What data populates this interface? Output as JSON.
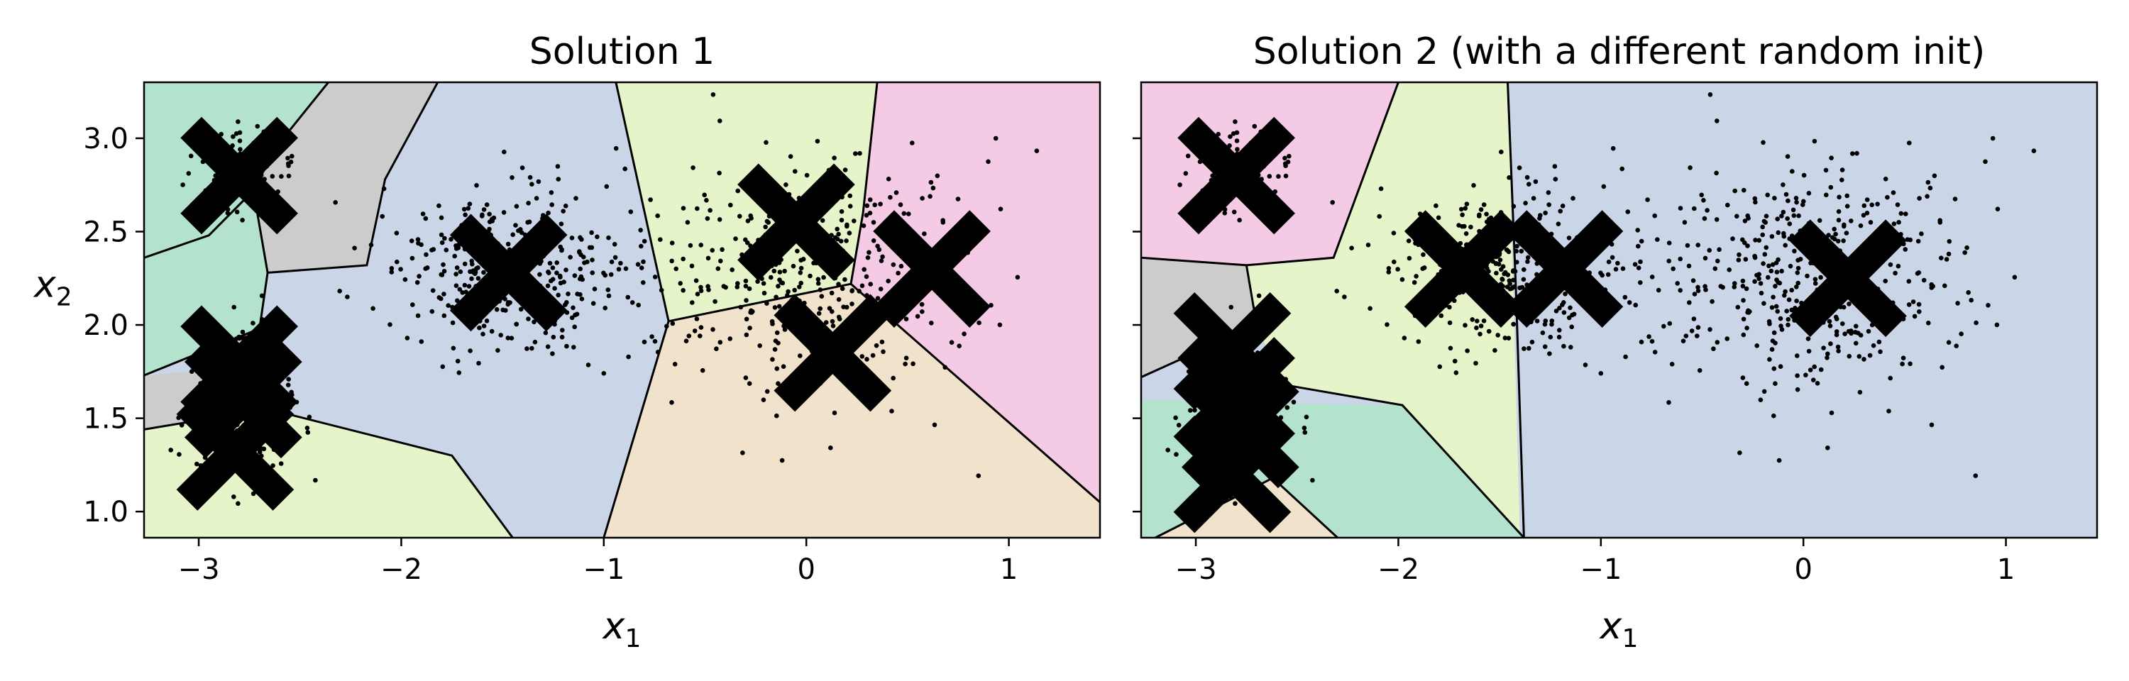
{
  "chart_data": [
    {
      "type": "scatter",
      "title": "Solution 1",
      "xlabel": "x",
      "xlabel_sub": "1",
      "ylabel": "x",
      "ylabel_sub": "2",
      "xlim": [
        -3.27,
        1.45
      ],
      "ylim": [
        0.86,
        3.3
      ],
      "xticks": [
        {
          "v": -3,
          "label": "−3"
        },
        {
          "v": -2,
          "label": "−2"
        },
        {
          "v": -1,
          "label": "−1"
        },
        {
          "v": 0,
          "label": "0"
        },
        {
          "v": 1,
          "label": "1"
        }
      ],
      "yticks": [
        {
          "v": 1.0,
          "label": "1.0"
        },
        {
          "v": 1.5,
          "label": "1.5"
        },
        {
          "v": 2.0,
          "label": "2.0"
        },
        {
          "v": 2.5,
          "label": "2.5"
        },
        {
          "v": 3.0,
          "label": "3.0"
        }
      ],
      "show_ytick_labels": true,
      "grid": false,
      "centroids": [
        {
          "x": -2.8,
          "y": 2.8
        },
        {
          "x": -1.47,
          "y": 2.28
        },
        {
          "x": -0.05,
          "y": 2.55
        },
        {
          "x": 0.62,
          "y": 2.3
        },
        {
          "x": 0.13,
          "y": 1.85
        },
        {
          "x": -2.8,
          "y": 1.79
        },
        {
          "x": -2.78,
          "y": 1.6
        },
        {
          "x": -2.82,
          "y": 1.32
        }
      ],
      "regions": [
        {
          "color": "#b3e2cd",
          "polygon": [
            [
              -3.27,
              3.3
            ],
            [
              -2.36,
              3.3
            ],
            [
              -2.62,
              2.95
            ],
            [
              -2.73,
              2.72
            ],
            [
              -2.95,
              2.48
            ],
            [
              -3.27,
              2.36
            ]
          ]
        },
        {
          "color": "#cccccc",
          "polygon": [
            [
              -2.36,
              3.3
            ],
            [
              -1.82,
              3.3
            ],
            [
              -2.08,
              2.78
            ],
            [
              -2.17,
              2.32
            ],
            [
              -2.66,
              2.28
            ],
            [
              -2.73,
              2.72
            ],
            [
              -2.62,
              2.95
            ]
          ]
        },
        {
          "color": "#cbd5e8",
          "polygon": [
            [
              -1.82,
              3.3
            ],
            [
              -0.94,
              3.3
            ],
            [
              -0.68,
              2.02
            ],
            [
              -1.0,
              0.86
            ],
            [
              -1.45,
              0.86
            ],
            [
              -1.75,
              1.3
            ],
            [
              -2.66,
              1.55
            ],
            [
              -2.7,
              1.98
            ],
            [
              -2.66,
              2.28
            ],
            [
              -2.17,
              2.32
            ],
            [
              -2.08,
              2.78
            ]
          ]
        },
        {
          "color": "#e6f5c9",
          "polygon": [
            [
              -0.94,
              3.3
            ],
            [
              0.35,
              3.3
            ],
            [
              0.28,
              2.6
            ],
            [
              0.22,
              2.22
            ],
            [
              -0.68,
              2.02
            ]
          ]
        },
        {
          "color": "#f4cae4",
          "polygon": [
            [
              0.35,
              3.3
            ],
            [
              1.45,
              3.3
            ],
            [
              1.45,
              1.05
            ],
            [
              0.22,
              2.22
            ],
            [
              0.28,
              2.6
            ]
          ]
        },
        {
          "color": "#f1e2cc",
          "polygon": [
            [
              -0.68,
              2.02
            ],
            [
              0.22,
              2.22
            ],
            [
              1.45,
              1.05
            ],
            [
              1.45,
              0.86
            ],
            [
              -1.0,
              0.86
            ]
          ]
        },
        {
          "color": "#b3e2cd",
          "polygon": [
            [
              -3.27,
              2.36
            ],
            [
              -2.95,
              2.48
            ],
            [
              -2.73,
              2.72
            ],
            [
              -2.66,
              2.28
            ],
            [
              -2.7,
              1.98
            ],
            [
              -3.27,
              1.73
            ]
          ]
        },
        {
          "color": "#cccccc",
          "polygon": [
            [
              -3.27,
              1.73
            ],
            [
              -2.7,
              1.78
            ],
            [
              -2.66,
              1.55
            ],
            [
              -3.27,
              1.44
            ]
          ]
        },
        {
          "color": "#e6f5c9",
          "polygon": [
            [
              -3.27,
              1.44
            ],
            [
              -2.66,
              1.55
            ],
            [
              -1.75,
              1.3
            ],
            [
              -1.45,
              0.86
            ],
            [
              -3.27,
              0.86
            ]
          ]
        }
      ],
      "boundaries": [
        [
          [
            -2.36,
            3.3
          ],
          [
            -2.62,
            2.95
          ],
          [
            -2.73,
            2.72
          ],
          [
            -2.95,
            2.48
          ],
          [
            -3.27,
            2.36
          ]
        ],
        [
          [
            -1.82,
            3.3
          ],
          [
            -2.08,
            2.78
          ],
          [
            -2.17,
            2.32
          ],
          [
            -2.66,
            2.28
          ],
          [
            -2.73,
            2.72
          ]
        ],
        [
          [
            -2.66,
            2.28
          ],
          [
            -2.7,
            1.98
          ],
          [
            -3.27,
            1.73
          ]
        ],
        [
          [
            -2.7,
            1.98
          ],
          [
            -2.7,
            1.78
          ],
          [
            -2.66,
            1.55
          ],
          [
            -3.27,
            1.44
          ]
        ],
        [
          [
            -2.66,
            1.55
          ],
          [
            -1.75,
            1.3
          ],
          [
            -1.45,
            0.86
          ]
        ],
        [
          [
            -0.94,
            3.3
          ],
          [
            -0.68,
            2.02
          ],
          [
            -1.0,
            0.86
          ]
        ],
        [
          [
            -0.68,
            2.02
          ],
          [
            0.22,
            2.22
          ],
          [
            1.45,
            1.05
          ]
        ],
        [
          [
            0.35,
            3.3
          ],
          [
            0.28,
            2.6
          ],
          [
            0.22,
            2.22
          ]
        ]
      ],
      "clusters": [
        {
          "cx": -2.8,
          "cy": 2.8,
          "sx": 0.12,
          "sy": 0.12,
          "n": 100
        },
        {
          "cx": -2.8,
          "cy": 1.55,
          "sx": 0.13,
          "sy": 0.2,
          "n": 230
        },
        {
          "cx": -1.46,
          "cy": 2.28,
          "sx": 0.28,
          "sy": 0.22,
          "n": 380
        },
        {
          "cx": 0.0,
          "cy": 2.28,
          "sx": 0.42,
          "sy": 0.36,
          "n": 430
        }
      ]
    },
    {
      "type": "scatter",
      "title": "Solution 2 (with a different random init)",
      "xlabel": "x",
      "xlabel_sub": "1",
      "xlim": [
        -3.27,
        1.45
      ],
      "ylim": [
        0.86,
        3.3
      ],
      "xticks": [
        {
          "v": -3,
          "label": "−3"
        },
        {
          "v": -2,
          "label": "−2"
        },
        {
          "v": -1,
          "label": "−1"
        },
        {
          "v": 0,
          "label": "0"
        },
        {
          "v": 1,
          "label": "1"
        }
      ],
      "yticks": [
        {
          "v": 1.0,
          "label": ""
        },
        {
          "v": 1.5,
          "label": ""
        },
        {
          "v": 2.0,
          "label": ""
        },
        {
          "v": 2.5,
          "label": ""
        },
        {
          "v": 3.0,
          "label": ""
        }
      ],
      "show_ytick_labels": false,
      "grid": false,
      "centroids": [
        {
          "x": -2.8,
          "y": 2.8
        },
        {
          "x": -1.68,
          "y": 2.3
        },
        {
          "x": -1.18,
          "y": 2.3
        },
        {
          "x": 0.22,
          "y": 2.25
        },
        {
          "x": -2.82,
          "y": 1.86
        },
        {
          "x": -2.8,
          "y": 1.62
        },
        {
          "x": -2.78,
          "y": 1.44
        },
        {
          "x": -2.82,
          "y": 1.2
        }
      ],
      "regions": [
        {
          "color": "#f4cae4",
          "polygon": [
            [
              -3.27,
              3.3
            ],
            [
              -2.0,
              3.3
            ],
            [
              -2.32,
              2.36
            ],
            [
              -2.75,
              2.32
            ],
            [
              -3.27,
              2.36
            ]
          ]
        },
        {
          "color": "#e6f5c9",
          "polygon": [
            [
              -2.0,
              3.3
            ],
            [
              -1.46,
              3.3
            ],
            [
              -1.4,
              0.86
            ],
            [
              -1.38,
              0.86
            ],
            [
              -1.98,
              1.57
            ],
            [
              -2.57,
              1.68
            ],
            [
              -2.7,
              2.0
            ],
            [
              -2.75,
              2.32
            ],
            [
              -2.32,
              2.36
            ]
          ]
        },
        {
          "color": "#cbd5e8",
          "polygon": [
            [
              -1.46,
              3.3
            ],
            [
              1.45,
              3.3
            ],
            [
              1.45,
              0.86
            ],
            [
              -1.38,
              0.86
            ]
          ]
        },
        {
          "color": "#cccccc",
          "polygon": [
            [
              -3.27,
              2.36
            ],
            [
              -2.75,
              2.32
            ],
            [
              -2.7,
              2.0
            ],
            [
              -3.27,
              1.72
            ]
          ]
        },
        {
          "color": "#b3e2cd",
          "polygon": [
            [
              -3.27,
              1.6
            ],
            [
              -2.62,
              1.58
            ],
            [
              -1.98,
              1.57
            ],
            [
              -1.38,
              0.86
            ],
            [
              -2.3,
              0.86
            ],
            [
              -3.27,
              0.86
            ]
          ]
        },
        {
          "color": "#f1e2cc",
          "polygon": [
            [
              -3.2,
              0.86
            ],
            [
              -2.62,
              1.18
            ],
            [
              -2.3,
              0.86
            ]
          ]
        }
      ],
      "boundaries": [
        [
          [
            -2.0,
            3.3
          ],
          [
            -2.32,
            2.36
          ],
          [
            -2.75,
            2.32
          ],
          [
            -3.27,
            2.36
          ]
        ],
        [
          [
            -2.75,
            2.32
          ],
          [
            -2.7,
            2.0
          ],
          [
            -3.27,
            1.72
          ]
        ],
        [
          [
            -2.57,
            1.68
          ],
          [
            -1.98,
            1.57
          ],
          [
            -1.38,
            0.86
          ]
        ],
        [
          [
            -1.46,
            3.3
          ],
          [
            -1.42,
            2.2
          ],
          [
            -1.38,
            0.86
          ]
        ],
        [
          [
            -3.2,
            0.86
          ],
          [
            -2.62,
            1.18
          ],
          [
            -2.3,
            0.86
          ]
        ]
      ],
      "clusters": [
        {
          "cx": -2.8,
          "cy": 2.8,
          "sx": 0.12,
          "sy": 0.12,
          "n": 100
        },
        {
          "cx": -2.8,
          "cy": 1.55,
          "sx": 0.13,
          "sy": 0.2,
          "n": 230
        },
        {
          "cx": -1.46,
          "cy": 2.28,
          "sx": 0.28,
          "sy": 0.22,
          "n": 380
        },
        {
          "cx": 0.0,
          "cy": 2.28,
          "sx": 0.42,
          "sy": 0.36,
          "n": 430
        }
      ]
    }
  ]
}
